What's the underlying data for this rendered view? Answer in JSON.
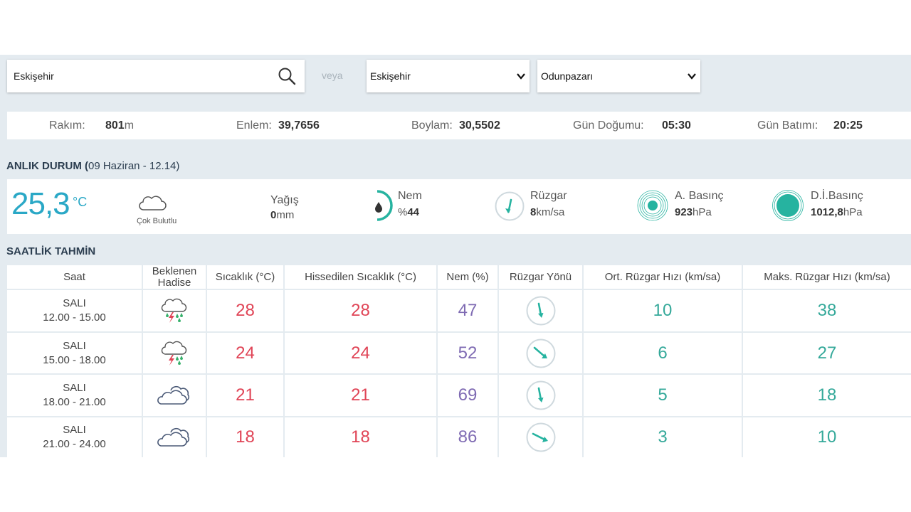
{
  "search": {
    "value": "Eskişehir",
    "icon": "search-icon"
  },
  "or_label": "veya",
  "province_select": {
    "value": "Eskişehir"
  },
  "district_select": {
    "value": "Odunpazarı"
  },
  "info": {
    "altitude_label": "Rakım:",
    "altitude_value": "801",
    "altitude_unit": "m",
    "lat_label": "Enlem:",
    "lat_value": "39,7656",
    "lon_label": "Boylam:",
    "lon_value": "30,5502",
    "sunrise_label": "Gün Doğumu:",
    "sunrise_value": "05:30",
    "sunset_label": "Gün Batımı:",
    "sunset_value": "20:25"
  },
  "current": {
    "title": "ANLIK DURUM (",
    "subtitle": "09 Haziran - 12.14)",
    "temp": "25,3",
    "temp_unit": "°C",
    "condition": "Çok Bulutlu",
    "rain_label": "Yağış",
    "rain_value": "0",
    "rain_unit": "mm",
    "humidity_label": "Nem",
    "humidity_prefix": "%",
    "humidity_value": "44",
    "wind_label": "Rüzgar",
    "wind_value": "8",
    "wind_unit": "km/sa",
    "pressure_label": "A. Basınç",
    "pressure_value": "923",
    "pressure_unit": "hPa",
    "sea_pressure_label": "D.İ.Basınç",
    "sea_pressure_value": "1012,8",
    "sea_pressure_unit": "hPa",
    "colors": {
      "accent": "#2aa8c6",
      "teal": "#26b3a0"
    }
  },
  "hourly": {
    "title": "SAATLİK TAHMİN",
    "headers": [
      "Saat",
      "Beklenen Hadise",
      "Sıcaklık (°C)",
      "Hissedilen Sıcaklık (°C)",
      "Nem (%)",
      "Rüzgar Yönü",
      "Ort. Rüzgar Hızı (km/sa)",
      "Maks. Rüzgar Hızı (km/sa)"
    ],
    "rows": [
      {
        "day": "SALI",
        "range": "12.00 - 15.00",
        "icon": "thunderstorm-rain-icon",
        "temp": "28",
        "feels": "28",
        "humidity": "47",
        "wind_icon": "wind-direction-icon",
        "avg": "10",
        "max": "38"
      },
      {
        "day": "SALI",
        "range": "15.00 - 18.00",
        "icon": "thunderstorm-rain-icon",
        "temp": "24",
        "feels": "24",
        "humidity": "52",
        "wind_icon": "wind-direction-icon",
        "avg": "6",
        "max": "27"
      },
      {
        "day": "SALI",
        "range": "18.00 - 21.00",
        "icon": "cloudy-icon",
        "temp": "21",
        "feels": "21",
        "humidity": "69",
        "wind_icon": "wind-direction-icon",
        "avg": "5",
        "max": "18"
      },
      {
        "day": "SALI",
        "range": "21.00 - 24.00",
        "icon": "cloudy-icon",
        "temp": "18",
        "feels": "18",
        "humidity": "86",
        "wind_icon": "wind-direction-icon",
        "avg": "3",
        "max": "10"
      }
    ],
    "colors": {
      "temp": "#e04456",
      "humidity": "#7f6bb3",
      "wind": "#35a99a"
    }
  }
}
